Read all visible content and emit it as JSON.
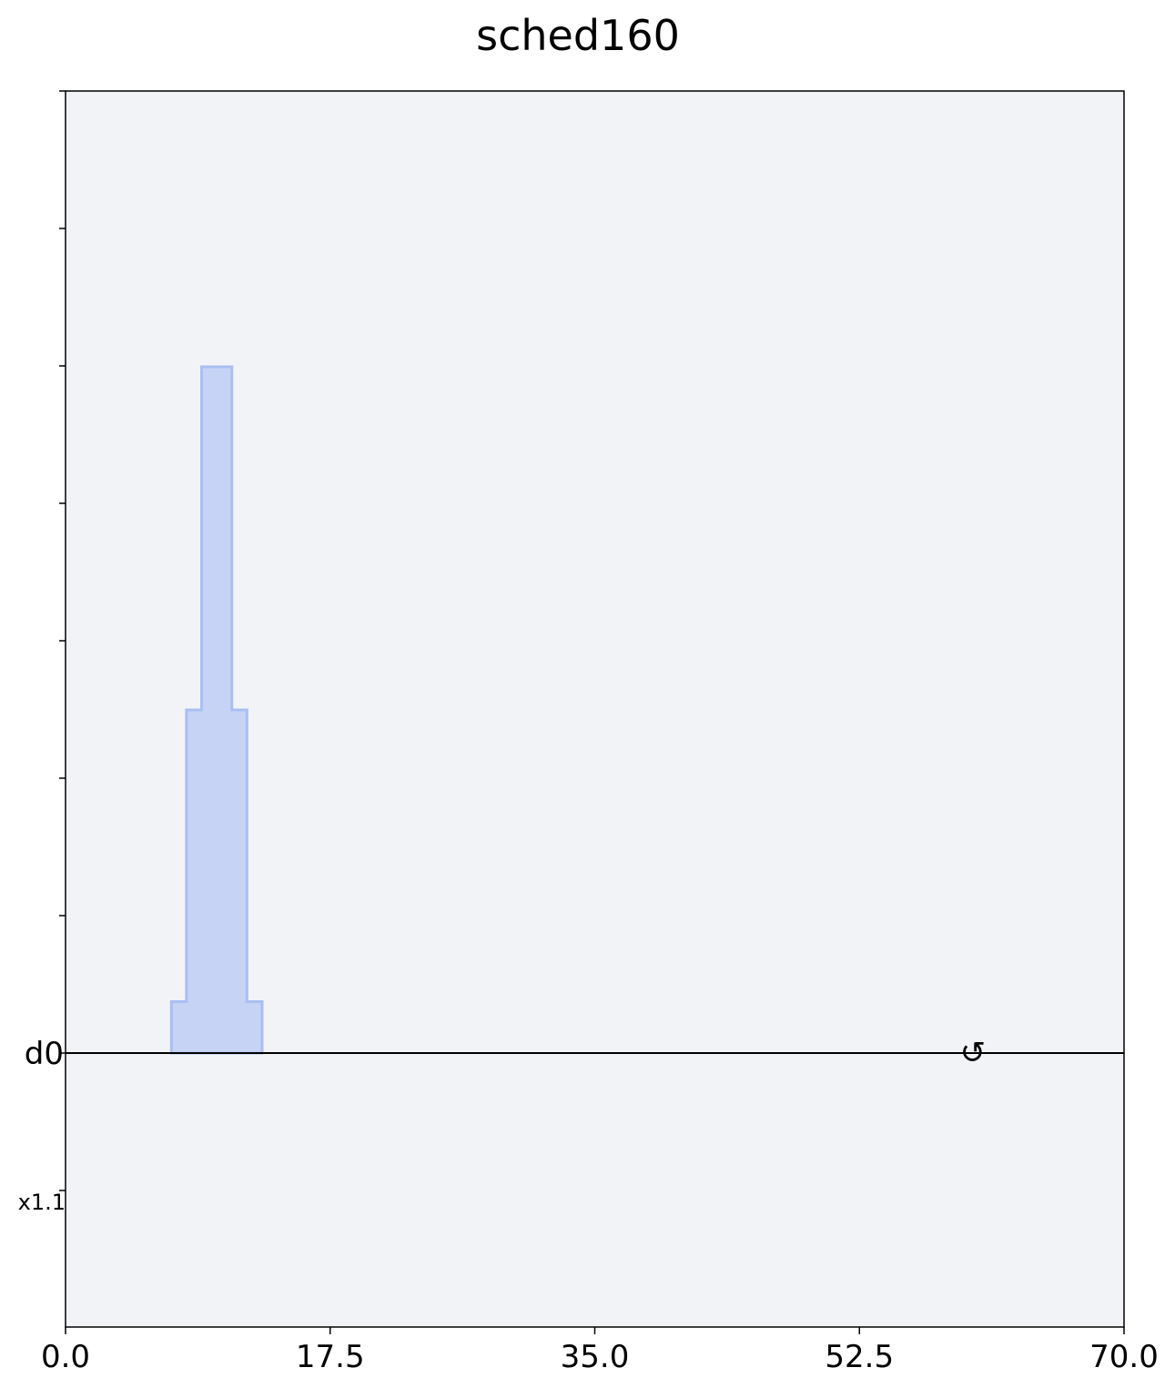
{
  "chart_data": {
    "type": "area",
    "title": "sched160",
    "xlabel": "",
    "ylabel": "",
    "xlim": [
      0.0,
      70.0
    ],
    "x_ticks": [
      "0.0",
      "17.5",
      "35.0",
      "52.5",
      "70.0"
    ],
    "grid": false,
    "legend": "none",
    "channels": [
      {
        "name": "d0",
        "scale_label": "x1.1"
      }
    ],
    "pulse": {
      "channel": "d0",
      "fill_color": "#c7d3f5",
      "edge_color": "#a9bff2",
      "steps": [
        {
          "t0": 7.0,
          "t1": 8.0,
          "amp": 0.15
        },
        {
          "t0": 8.0,
          "t1": 9.0,
          "amp": 1.0
        },
        {
          "t0": 9.0,
          "t1": 11.0,
          "amp": 2.0
        },
        {
          "t0": 11.0,
          "t1": 12.0,
          "amp": 1.0
        },
        {
          "t0": 12.0,
          "t1": 13.0,
          "amp": 0.15
        }
      ]
    },
    "phase_marker": {
      "channel": "d0",
      "t": 60.0,
      "glyph": "↺"
    },
    "colors": {
      "plot_background": "#f1f3f6",
      "baseline": "#000000"
    }
  }
}
